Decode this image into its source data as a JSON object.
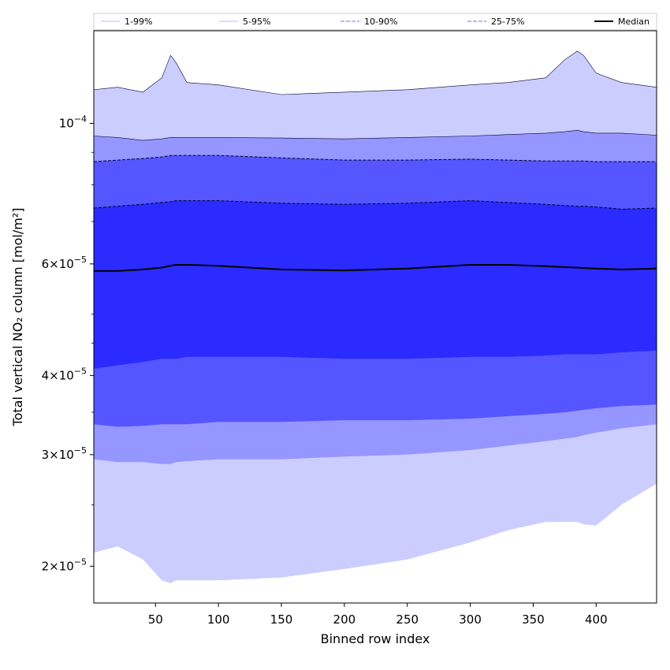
{
  "chart_data": {
    "type": "area",
    "title": "",
    "xlabel": "Binned row index",
    "ylabel": "Total vertical NO₂ column [mol/m²]",
    "yscale": "log",
    "xlim": [
      1,
      448
    ],
    "ylim": [
      1.75e-05,
      0.00014
    ],
    "grid": false,
    "legend_placement": "top",
    "x_ticks": [
      50,
      100,
      150,
      200,
      250,
      300,
      350,
      400
    ],
    "y_ticks": [
      {
        "value": 2e-05,
        "mantissa": "2",
        "times": "×",
        "base": "10",
        "exp": "−5"
      },
      {
        "value": 3e-05,
        "mantissa": "3",
        "times": "×",
        "base": "10",
        "exp": "−5"
      },
      {
        "value": 4e-05,
        "mantissa": "4",
        "times": "×",
        "base": "10",
        "exp": "−5"
      },
      {
        "value": 6e-05,
        "mantissa": "6",
        "times": "×",
        "base": "10",
        "exp": "−5"
      },
      {
        "value": 0.0001,
        "mantissa": "",
        "times": "",
        "base": "10",
        "exp": "−4"
      }
    ],
    "x": [
      1,
      20,
      40,
      55,
      62,
      66,
      75,
      100,
      150,
      200,
      250,
      300,
      330,
      360,
      375,
      385,
      390,
      400,
      420,
      448
    ],
    "bands": [
      {
        "name": "1-99%",
        "color": "#cccdff",
        "line_style": "solid",
        "lower": [
          2.1e-05,
          2.15e-05,
          2.05e-05,
          1.9e-05,
          1.88e-05,
          1.9e-05,
          1.9e-05,
          1.9e-05,
          1.92e-05,
          1.98e-05,
          2.05e-05,
          2.18e-05,
          2.28e-05,
          2.35e-05,
          2.35e-05,
          2.35e-05,
          2.33e-05,
          2.32e-05,
          2.5e-05,
          2.7e-05
        ],
        "upper": [
          0.000113,
          0.000114,
          0.000112,
          0.000118,
          0.000128,
          0.000125,
          0.000116,
          0.000115,
          0.000111,
          0.000112,
          0.000113,
          0.000115,
          0.000116,
          0.000118,
          0.000126,
          0.00013,
          0.000128,
          0.00012,
          0.000116,
          0.000114
        ]
      },
      {
        "name": "5-95%",
        "color": "#9596ff",
        "line_style": "solid",
        "lower": [
          2.95e-05,
          2.92e-05,
          2.92e-05,
          2.9e-05,
          2.9e-05,
          2.92e-05,
          2.93e-05,
          2.95e-05,
          2.95e-05,
          2.98e-05,
          3e-05,
          3.05e-05,
          3.1e-05,
          3.15e-05,
          3.18e-05,
          3.2e-05,
          3.22e-05,
          3.25e-05,
          3.3e-05,
          3.35e-05
        ],
        "upper": [
          9.55e-05,
          9.5e-05,
          9.4e-05,
          9.45e-05,
          9.5e-05,
          9.5e-05,
          9.5e-05,
          9.5e-05,
          9.48e-05,
          9.45e-05,
          9.5e-05,
          9.55e-05,
          9.6e-05,
          9.65e-05,
          9.7e-05,
          9.75e-05,
          9.7e-05,
          9.65e-05,
          9.65e-05,
          9.58e-05
        ]
      },
      {
        "name": "10-90%",
        "color": "#5556ff",
        "line_style": "dashed",
        "lower": [
          3.35e-05,
          3.32e-05,
          3.33e-05,
          3.35e-05,
          3.35e-05,
          3.35e-05,
          3.35e-05,
          3.38e-05,
          3.38e-05,
          3.4e-05,
          3.4e-05,
          3.42e-05,
          3.45e-05,
          3.48e-05,
          3.5e-05,
          3.52e-05,
          3.53e-05,
          3.55e-05,
          3.58e-05,
          3.6e-05
        ],
        "upper": [
          8.7e-05,
          8.75e-05,
          8.8e-05,
          8.85e-05,
          8.9e-05,
          8.9e-05,
          8.9e-05,
          8.9e-05,
          8.82e-05,
          8.75e-05,
          8.75e-05,
          8.78e-05,
          8.75e-05,
          8.72e-05,
          8.72e-05,
          8.72e-05,
          8.72e-05,
          8.7e-05,
          8.7e-05,
          8.7e-05
        ]
      },
      {
        "name": "25-75%",
        "color": "#2b2bff",
        "line_style": "dashed",
        "lower": [
          4.1e-05,
          4.15e-05,
          4.2e-05,
          4.25e-05,
          4.25e-05,
          4.25e-05,
          4.28e-05,
          4.28e-05,
          4.28e-05,
          4.25e-05,
          4.25e-05,
          4.28e-05,
          4.28e-05,
          4.3e-05,
          4.32e-05,
          4.32e-05,
          4.32e-05,
          4.32e-05,
          4.35e-05,
          4.38e-05
        ],
        "upper": [
          7.35e-05,
          7.4e-05,
          7.45e-05,
          7.5e-05,
          7.52e-05,
          7.55e-05,
          7.55e-05,
          7.55e-05,
          7.48e-05,
          7.45e-05,
          7.48e-05,
          7.55e-05,
          7.5e-05,
          7.45e-05,
          7.42e-05,
          7.4e-05,
          7.4e-05,
          7.38e-05,
          7.32e-05,
          7.35e-05
        ]
      }
    ],
    "median": {
      "name": "Median",
      "color": "#000000",
      "values": [
        5.85e-05,
        5.85e-05,
        5.88e-05,
        5.92e-05,
        5.96e-05,
        5.98e-05,
        5.98e-05,
        5.96e-05,
        5.88e-05,
        5.86e-05,
        5.9e-05,
        5.98e-05,
        5.98e-05,
        5.95e-05,
        5.93e-05,
        5.92e-05,
        5.91e-05,
        5.9e-05,
        5.88e-05,
        5.9e-05
      ]
    }
  }
}
